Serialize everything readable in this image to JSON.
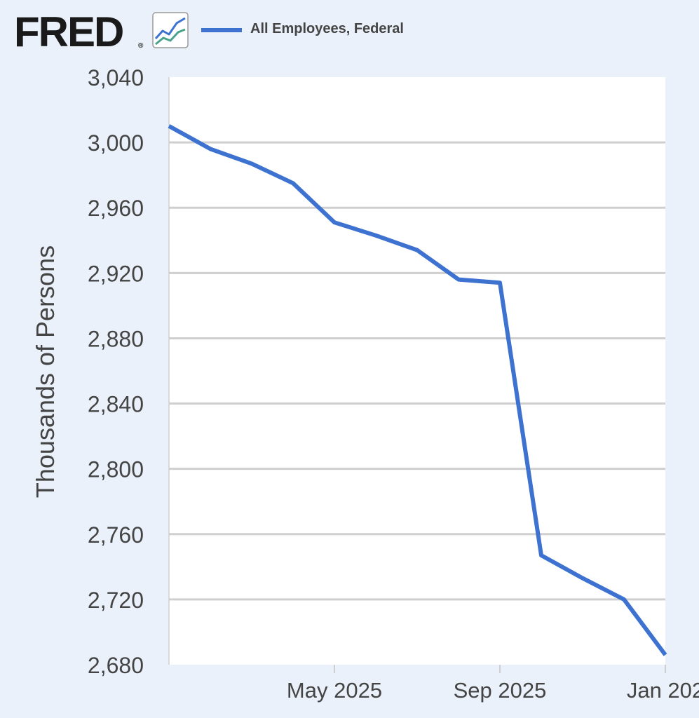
{
  "header": {
    "logo_text": "FRED",
    "logo_mark": "®",
    "logo_icon": "line-chart-icon",
    "legend_label": "All Employees, Federal"
  },
  "colors": {
    "background": "#eaf1fa",
    "plot_background": "#ffffff",
    "series": "#3d72d1",
    "grid": "#cfcfcf",
    "text": "#444444",
    "logo": "#1a1a1a"
  },
  "chart_data": {
    "type": "line",
    "title": "",
    "xlabel": "",
    "ylabel": "Thousands of Persons",
    "ylim": [
      2680,
      3040
    ],
    "yticks": [
      "3,040",
      "3,000",
      "2,960",
      "2,920",
      "2,880",
      "2,840",
      "2,800",
      "2,760",
      "2,720",
      "2,680"
    ],
    "ytick_values": [
      3040,
      3000,
      2960,
      2920,
      2880,
      2840,
      2800,
      2760,
      2720,
      2680
    ],
    "xlim": [
      "2025-01",
      "2026-01"
    ],
    "xticks": [
      {
        "label": "May 2025",
        "date": "2025-05"
      },
      {
        "label": "Sep 2025",
        "date": "2025-09"
      },
      {
        "label": "Jan 202",
        "date": "2026-01"
      }
    ],
    "grid": true,
    "legend_position": "top",
    "series": [
      {
        "name": "All Employees, Federal",
        "x": [
          "2025-01",
          "2025-02",
          "2025-03",
          "2025-04",
          "2025-05",
          "2025-06",
          "2025-07",
          "2025-08",
          "2025-09",
          "2025-10",
          "2025-11",
          "2025-12",
          "2026-01"
        ],
        "values": [
          3010,
          2996,
          2987,
          2975,
          2951,
          2943,
          2934,
          2916,
          2914,
          2747,
          2733,
          2720,
          2686
        ]
      }
    ]
  }
}
